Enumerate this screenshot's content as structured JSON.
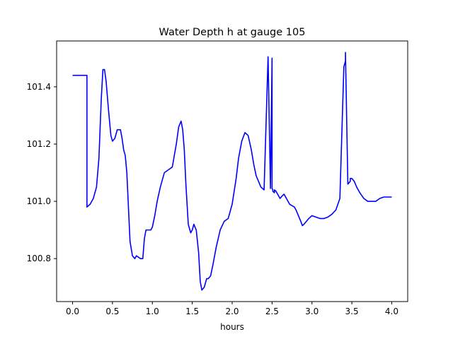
{
  "chart_data": {
    "type": "line",
    "title": "Water Depth h at gauge 105",
    "xlabel": "hours",
    "ylabel": "",
    "xlim": [
      -0.2,
      4.2
    ],
    "ylim": [
      100.65,
      101.56
    ],
    "xticks": [
      0.0,
      0.5,
      1.0,
      1.5,
      2.0,
      2.5,
      3.0,
      3.5,
      4.0
    ],
    "xtick_labels": [
      "0.0",
      "0.5",
      "1.0",
      "1.5",
      "2.0",
      "2.5",
      "3.0",
      "3.5",
      "4.0"
    ],
    "yticks": [
      100.8,
      101.0,
      101.2,
      101.4
    ],
    "ytick_labels": [
      "100.8",
      "101.0",
      "101.2",
      "101.4"
    ],
    "grid": false,
    "series": [
      {
        "color": "#0000ff",
        "x": [
          0.0,
          0.18,
          0.18,
          0.22,
          0.26,
          0.3,
          0.33,
          0.36,
          0.38,
          0.4,
          0.42,
          0.45,
          0.48,
          0.5,
          0.53,
          0.56,
          0.6,
          0.62,
          0.64,
          0.66,
          0.68,
          0.7,
          0.72,
          0.75,
          0.78,
          0.8,
          0.85,
          0.88,
          0.9,
          0.92,
          0.95,
          0.98,
          1.0,
          1.03,
          1.06,
          1.1,
          1.15,
          1.2,
          1.25,
          1.3,
          1.33,
          1.36,
          1.38,
          1.4,
          1.42,
          1.45,
          1.48,
          1.5,
          1.52,
          1.55,
          1.58,
          1.6,
          1.62,
          1.65,
          1.68,
          1.7,
          1.73,
          1.76,
          1.8,
          1.85,
          1.9,
          1.95,
          1.98,
          2.0,
          2.05,
          2.08,
          2.12,
          2.16,
          2.2,
          2.24,
          2.27,
          2.3,
          2.33,
          2.36,
          2.4,
          2.45,
          2.48,
          2.5,
          2.5,
          2.51,
          2.51,
          2.53,
          2.53,
          2.55,
          2.58,
          2.6,
          2.63,
          2.65,
          2.68,
          2.72,
          2.75,
          2.78,
          2.8,
          2.83,
          2.86,
          2.88,
          2.9,
          2.93,
          2.96,
          3.0,
          3.05,
          3.1,
          3.15,
          3.2,
          3.25,
          3.3,
          3.35,
          3.4,
          3.42,
          3.42,
          3.45,
          3.48,
          3.48,
          3.5,
          3.53,
          3.56,
          3.6,
          3.65,
          3.7,
          3.75,
          3.8,
          3.85,
          3.9,
          3.95,
          4.0
        ],
        "y": [
          101.44,
          101.44,
          100.98,
          100.99,
          101.01,
          101.05,
          101.15,
          101.36,
          101.46,
          101.46,
          101.42,
          101.32,
          101.23,
          101.21,
          101.22,
          101.25,
          101.25,
          101.22,
          101.18,
          101.16,
          101.1,
          100.98,
          100.86,
          100.81,
          100.8,
          100.81,
          100.8,
          100.8,
          100.87,
          100.9,
          100.9,
          100.9,
          100.91,
          100.95,
          101.0,
          101.05,
          101.1,
          101.11,
          101.12,
          101.2,
          101.26,
          101.28,
          101.25,
          101.18,
          101.06,
          100.92,
          100.89,
          100.9,
          100.92,
          100.9,
          100.82,
          100.72,
          100.69,
          100.7,
          100.73,
          100.73,
          100.74,
          100.78,
          100.84,
          100.9,
          100.93,
          100.94,
          100.97,
          100.99,
          101.08,
          101.15,
          101.21,
          101.24,
          101.23,
          101.18,
          101.13,
          101.09,
          101.07,
          101.05,
          101.04,
          101.505,
          101.045,
          101.5,
          101.045,
          101.04,
          101.035,
          101.03,
          101.04,
          101.035,
          101.02,
          101.01,
          101.02,
          101.025,
          101.01,
          100.99,
          100.985,
          100.98,
          100.97,
          100.95,
          100.93,
          100.915,
          100.92,
          100.93,
          100.94,
          100.95,
          100.945,
          100.94,
          100.94,
          100.945,
          100.955,
          100.97,
          101.01,
          101.47,
          101.49,
          101.52,
          101.06,
          101.07,
          101.08,
          101.08,
          101.07,
          101.05,
          101.03,
          101.01,
          101.0,
          101.0,
          101.0,
          101.01,
          101.015,
          101.015,
          101.015
        ]
      }
    ]
  }
}
